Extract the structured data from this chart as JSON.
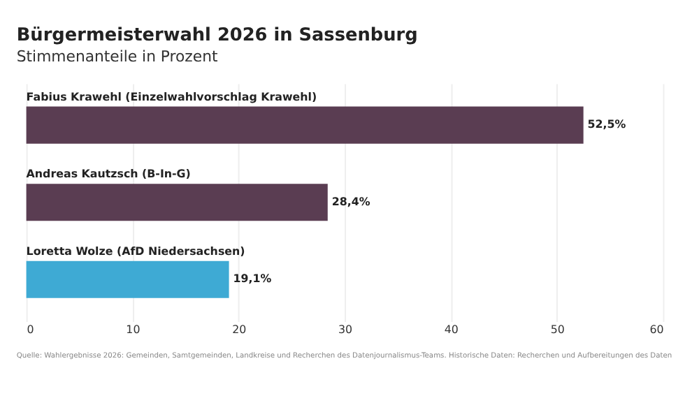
{
  "chart_data": {
    "type": "bar",
    "orientation": "horizontal",
    "title": "Bürgermeisterwahl 2026 in Sassenburg",
    "subtitle": "Stimmenanteile in Prozent",
    "categories": [
      "Fabius Krawehl (Einzelwahlvorschlag Krawehl)",
      "Andreas Kautzsch (B-In-G)",
      "Loretta Wolze (AfD Niedersachsen)"
    ],
    "values": [
      52.5,
      28.4,
      19.1
    ],
    "colors": [
      "#5a3d52",
      "#5a3d52",
      "#3eaad4"
    ],
    "value_labels": [
      "52,5%",
      "28,4%",
      "19,1%"
    ],
    "xlim": [
      0,
      60
    ],
    "xticks": [
      0,
      10,
      20,
      30,
      40,
      50,
      60
    ],
    "grid": "x",
    "annotations": [
      "Quelle: Wahlergebnisse 2026: Gemeinden, Samtgemeinden, Landkreise und Recherchen des Datenjournalismus-Teams. Historische Daten: Recherchen und Aufbereitungen des Daten"
    ]
  }
}
